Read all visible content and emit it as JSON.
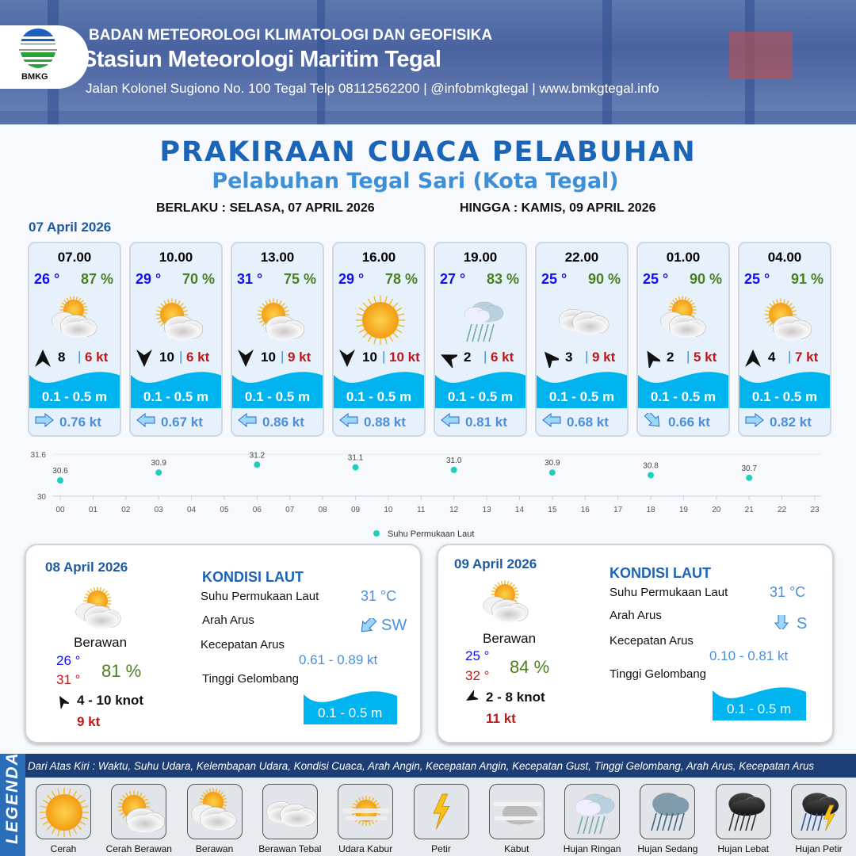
{
  "header": {
    "org": "BADAN METEOROLOGI KLIMATOLOGI DAN GEOFISIKA",
    "station": "Stasiun Meteorologi Maritim Tegal",
    "contact": "Jalan Kolonel Sugiono No. 100 Tegal Telp 08112562200 | @infobmkgtegal  | www.bmkgtegal.info",
    "logo_text": "BMKG"
  },
  "title": "PRAKIRAAN CUACA PELABUHAN",
  "subtitle": "Pelabuhan Tegal Sari (Kota Tegal)",
  "valid_from": "BERLAKU : SELASA, 07 APRIL 2026",
  "valid_to": "HINGGA :  KAMIS, 09 APRIL 2026",
  "day1": {
    "date": "07 April 2026",
    "forecasts": [
      {
        "time": "07.00",
        "temp": "26 °",
        "hum": "87 %",
        "icon": "berawan",
        "wind_dir_deg": 0,
        "wind": "8",
        "gust": "6 kt",
        "wave": "0.1 - 0.5 m",
        "current_dir_deg": 0,
        "current": "0.76 kt"
      },
      {
        "time": "10.00",
        "temp": "29 °",
        "hum": "70 %",
        "icon": "cerah-berawan",
        "wind_dir_deg": 180,
        "wind": "10",
        "gust": "6 kt",
        "wave": "0.1 - 0.5 m",
        "current_dir_deg": 180,
        "current": "0.67 kt"
      },
      {
        "time": "13.00",
        "temp": "31 °",
        "hum": "75 %",
        "icon": "cerah-berawan",
        "wind_dir_deg": 180,
        "wind": "10",
        "gust": "9 kt",
        "wave": "0.1 - 0.5 m",
        "current_dir_deg": 180,
        "current": "0.86 kt"
      },
      {
        "time": "16.00",
        "temp": "29 °",
        "hum": "78 %",
        "icon": "cerah",
        "wind_dir_deg": 180,
        "wind": "10",
        "gust": "10 kt",
        "wave": "0.1 - 0.5 m",
        "current_dir_deg": 180,
        "current": "0.88 kt"
      },
      {
        "time": "19.00",
        "temp": "27 °",
        "hum": "83 %",
        "icon": "hujan-ringan",
        "wind_dir_deg": -65,
        "wind": "2",
        "gust": "6 kt",
        "wave": "0.1 - 0.5 m",
        "current_dir_deg": 180,
        "current": "0.81 kt"
      },
      {
        "time": "22.00",
        "temp": "25 °",
        "hum": "90 %",
        "icon": "berawan-tebal",
        "wind_dir_deg": -40,
        "wind": "3",
        "gust": "9 kt",
        "wave": "0.1 - 0.5 m",
        "current_dir_deg": 180,
        "current": "0.68 kt"
      },
      {
        "time": "01.00",
        "temp": "25 °",
        "hum": "90 %",
        "icon": "berawan",
        "wind_dir_deg": -30,
        "wind": "2",
        "gust": "5 kt",
        "wave": "0.1 - 0.5 m",
        "current_dir_deg": 45,
        "current": "0.66 kt"
      },
      {
        "time": "04.00",
        "temp": "25 °",
        "hum": "91 %",
        "icon": "cerah-berawan",
        "wind_dir_deg": 0,
        "wind": "4",
        "gust": "7 kt",
        "wave": "0.1 - 0.5 m",
        "current_dir_deg": 0,
        "current": "0.82 kt"
      }
    ]
  },
  "chart_data": {
    "type": "scatter",
    "series": [
      {
        "name": "Suhu Permukaan Laut",
        "x": [
          "00",
          "03",
          "06",
          "09",
          "12",
          "15",
          "18",
          "21"
        ],
        "values": [
          30.6,
          30.9,
          31.2,
          31.1,
          31.0,
          30.9,
          30.8,
          30.7
        ],
        "color": "#1ecfc0"
      }
    ],
    "x_ticks": [
      "00",
      "01",
      "02",
      "03",
      "04",
      "05",
      "06",
      "07",
      "08",
      "09",
      "10",
      "11",
      "12",
      "13",
      "14",
      "15",
      "16",
      "17",
      "18",
      "19",
      "20",
      "21",
      "22",
      "23"
    ],
    "y_ticks": [
      "30",
      "31.6"
    ],
    "ylim": [
      30,
      31.6
    ],
    "legend": "bottom",
    "grid": true
  },
  "days": [
    {
      "date": "08 April 2026",
      "icon": "berawan",
      "condition": "Berawan",
      "tmin": "26 °",
      "tmax": "31 °",
      "hum": "81 %",
      "wind_dir_deg": -30,
      "wind": "4  - 10 knot",
      "gust": "9 kt",
      "sea_title": "KONDISI LAUT",
      "sst_label": "Suhu Permukaan Laut",
      "sst": "31 °C",
      "cur_dir_label": "Arah Arus",
      "cur_dir": "SW",
      "cur_dir_deg": 135,
      "cur_speed_label": "Kecepatan Arus",
      "cur_speed": "0.61  - 0.89 kt",
      "wave_label": "Tinggi Gelombang",
      "wave": "0.1 - 0.5 m"
    },
    {
      "date": "09 April 2026",
      "icon": "berawan",
      "condition": "Berawan",
      "tmin": "25 °",
      "tmax": "32 °",
      "hum": "84 %",
      "wind_dir_deg": -120,
      "wind": "2  - 8 knot",
      "gust": "11 kt",
      "sea_title": "KONDISI LAUT",
      "sst_label": "Suhu Permukaan Laut",
      "sst": "31 °C",
      "cur_dir_label": "Arah Arus",
      "cur_dir": "S",
      "cur_dir_deg": 90,
      "cur_speed_label": "Kecepatan Arus",
      "cur_speed": "0.10 - 0.81 kt",
      "wave_label": "Tinggi Gelombang",
      "wave": "0.1 - 0.5 m"
    }
  ],
  "legend": {
    "title": "LEGENDA",
    "description": "Dari Atas Kiri : Waktu, Suhu Udara, Kelembapan Udara, Kondisi Cuaca, Arah Angin, Kecepatan Angin, Kecepatan Gust, Tinggi Gelombang, Arah Arus, Kecepatan Arus",
    "items": [
      {
        "label": "Cerah",
        "icon": "cerah"
      },
      {
        "label": "Cerah Berawan",
        "icon": "cerah-berawan"
      },
      {
        "label": "Berawan",
        "icon": "berawan"
      },
      {
        "label": "Berawan Tebal",
        "icon": "berawan-tebal"
      },
      {
        "label": "Udara Kabur",
        "icon": "udara-kabur"
      },
      {
        "label": "Petir",
        "icon": "petir"
      },
      {
        "label": "Kabut",
        "icon": "kabut"
      },
      {
        "label": "Hujan Ringan",
        "icon": "hujan-ringan"
      },
      {
        "label": "Hujan Sedang",
        "icon": "hujan-sedang"
      },
      {
        "label": "Hujan Lebat",
        "icon": "hujan-lebat"
      },
      {
        "label": "Hujan Petir",
        "icon": "hujan-petir"
      }
    ]
  },
  "colors": {
    "primary": "#1b64b6",
    "temp": "#1010ee",
    "humidity": "#4c7f1e",
    "gust": "#c01818",
    "wave": "#00b4f0",
    "current": "#4a8fdc"
  }
}
